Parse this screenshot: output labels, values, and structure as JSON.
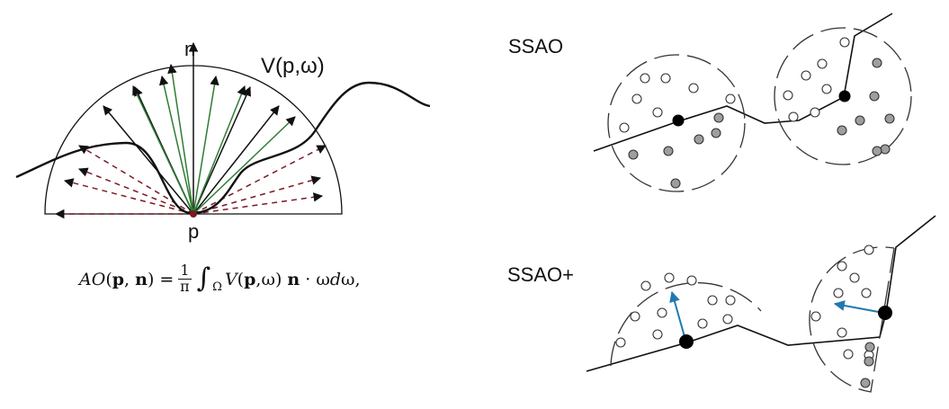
{
  "left_diagram": {
    "normal_label": "n",
    "visibility_label": "V(p,ω)",
    "point_label": "p"
  },
  "formula": {
    "lhs_fn": "AO",
    "lhs_p": "p",
    "lhs_n": "n",
    "frac_num": "1",
    "frac_den": "π",
    "integral_symbol": "∫",
    "domain": "Ω",
    "rhs_fn": "V",
    "rhs_p": "p",
    "rhs_omega": "ω",
    "rhs_n": "n",
    "tail": "· ω",
    "d": "d",
    "d_omega": "ω,"
  },
  "right_diagram": {
    "top_label": "SSAO",
    "bottom_label": "SSAO+"
  },
  "colors": {
    "unoccluded_ray": "#2e7d32",
    "occluded_ray": "#7b1a24",
    "normal_arrow": "#1f7ab0",
    "occluded_sample": "#9e9e9e",
    "line": "#111111"
  }
}
